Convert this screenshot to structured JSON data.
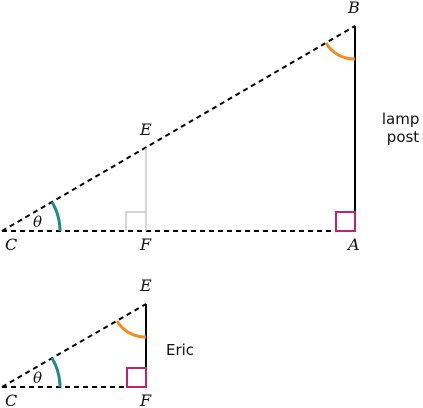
{
  "colors": {
    "line": "#000000",
    "helper": "#bbbbbb",
    "right_angle_marker": "#c0246e",
    "angle_theta": "#1b8b8b",
    "angle_top": "#f28c1c"
  },
  "large_triangle": {
    "points": {
      "C": "C",
      "A": "A",
      "B": "B",
      "E": "E",
      "F": "F"
    },
    "angle_label": "θ",
    "side_label": {
      "line1": "lamp",
      "line2": "post"
    }
  },
  "small_triangle": {
    "points": {
      "C": "C",
      "E": "E",
      "F": "F"
    },
    "angle_label": "θ",
    "side_label": "Eric"
  }
}
